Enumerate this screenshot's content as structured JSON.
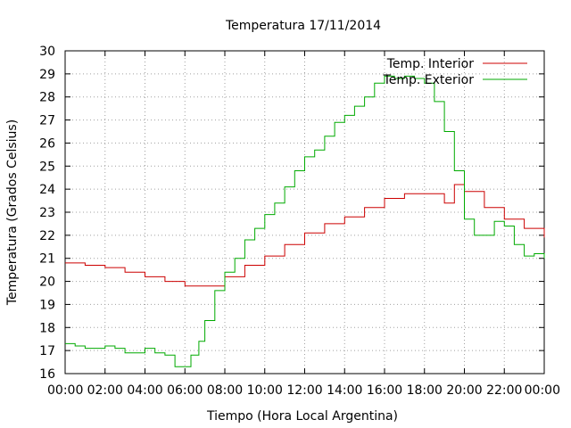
{
  "chart_data": {
    "type": "line",
    "title": "Temperatura 17/11/2014",
    "xlabel": "Tiempo (Hora Local Argentina)",
    "ylabel": "Temperatura (Grados Celsius)",
    "xlim": [
      0,
      24
    ],
    "ylim": [
      16,
      30
    ],
    "xticks": [
      {
        "value": 0,
        "label": "00:00"
      },
      {
        "value": 2,
        "label": "02:00"
      },
      {
        "value": 4,
        "label": "04:00"
      },
      {
        "value": 6,
        "label": "06:00"
      },
      {
        "value": 8,
        "label": "08:00"
      },
      {
        "value": 10,
        "label": "10:00"
      },
      {
        "value": 12,
        "label": "12:00"
      },
      {
        "value": 14,
        "label": "14:00"
      },
      {
        "value": 16,
        "label": "16:00"
      },
      {
        "value": 18,
        "label": "18:00"
      },
      {
        "value": 20,
        "label": "20:00"
      },
      {
        "value": 22,
        "label": "22:00"
      },
      {
        "value": 24,
        "label": "00:00"
      }
    ],
    "yticks": [
      {
        "value": 16,
        "label": "16"
      },
      {
        "value": 17,
        "label": "17"
      },
      {
        "value": 18,
        "label": "18"
      },
      {
        "value": 19,
        "label": "19"
      },
      {
        "value": 20,
        "label": "20"
      },
      {
        "value": 21,
        "label": "21"
      },
      {
        "value": 22,
        "label": "22"
      },
      {
        "value": 23,
        "label": "23"
      },
      {
        "value": 24,
        "label": "24"
      },
      {
        "value": 25,
        "label": "25"
      },
      {
        "value": 26,
        "label": "26"
      },
      {
        "value": 27,
        "label": "27"
      },
      {
        "value": 28,
        "label": "28"
      },
      {
        "value": 29,
        "label": "29"
      },
      {
        "value": 30,
        "label": "30"
      }
    ],
    "grid": true,
    "legend_position": "top-right",
    "series": [
      {
        "name": "Temp. Interior",
        "color": "#cc0000",
        "x": [
          0,
          1,
          2,
          3,
          4,
          5,
          6,
          7,
          8,
          9,
          10,
          11,
          12,
          13,
          14,
          15,
          16,
          17,
          18,
          19,
          19.5,
          20,
          21,
          22,
          23,
          24
        ],
        "y": [
          20.8,
          20.7,
          20.6,
          20.4,
          20.2,
          20.0,
          19.8,
          19.8,
          20.2,
          20.7,
          21.1,
          21.6,
          22.1,
          22.5,
          22.8,
          23.2,
          23.6,
          23.8,
          23.8,
          23.4,
          24.2,
          23.9,
          23.2,
          22.7,
          22.3,
          21.9
        ]
      },
      {
        "name": "Temp. Exterior",
        "color": "#00aa00",
        "x": [
          0,
          0.5,
          1,
          2,
          2.5,
          3,
          3.5,
          4,
          4.5,
          5,
          5.5,
          6,
          6.3,
          6.7,
          7,
          7.5,
          8,
          8.5,
          9,
          9.5,
          10,
          10.5,
          11,
          11.5,
          12,
          12.5,
          13,
          13.5,
          14,
          14.5,
          15,
          15.5,
          16,
          16.5,
          17,
          17.5,
          18,
          18.5,
          19,
          19.5,
          20,
          20.5,
          21,
          21.5,
          22,
          22.5,
          23,
          23.5,
          24
        ],
        "y": [
          17.3,
          17.2,
          17.1,
          17.2,
          17.1,
          16.9,
          16.9,
          17.1,
          16.9,
          16.8,
          16.3,
          16.3,
          16.8,
          17.4,
          18.3,
          19.6,
          20.4,
          21.0,
          21.8,
          22.3,
          22.9,
          23.4,
          24.1,
          24.8,
          25.4,
          25.7,
          26.3,
          26.9,
          27.2,
          27.6,
          28.0,
          28.6,
          28.9,
          28.8,
          28.9,
          28.8,
          28.6,
          27.8,
          26.5,
          24.8,
          22.7,
          22.0,
          22.0,
          22.6,
          22.4,
          21.6,
          21.1,
          21.2,
          21.0
        ]
      }
    ]
  }
}
